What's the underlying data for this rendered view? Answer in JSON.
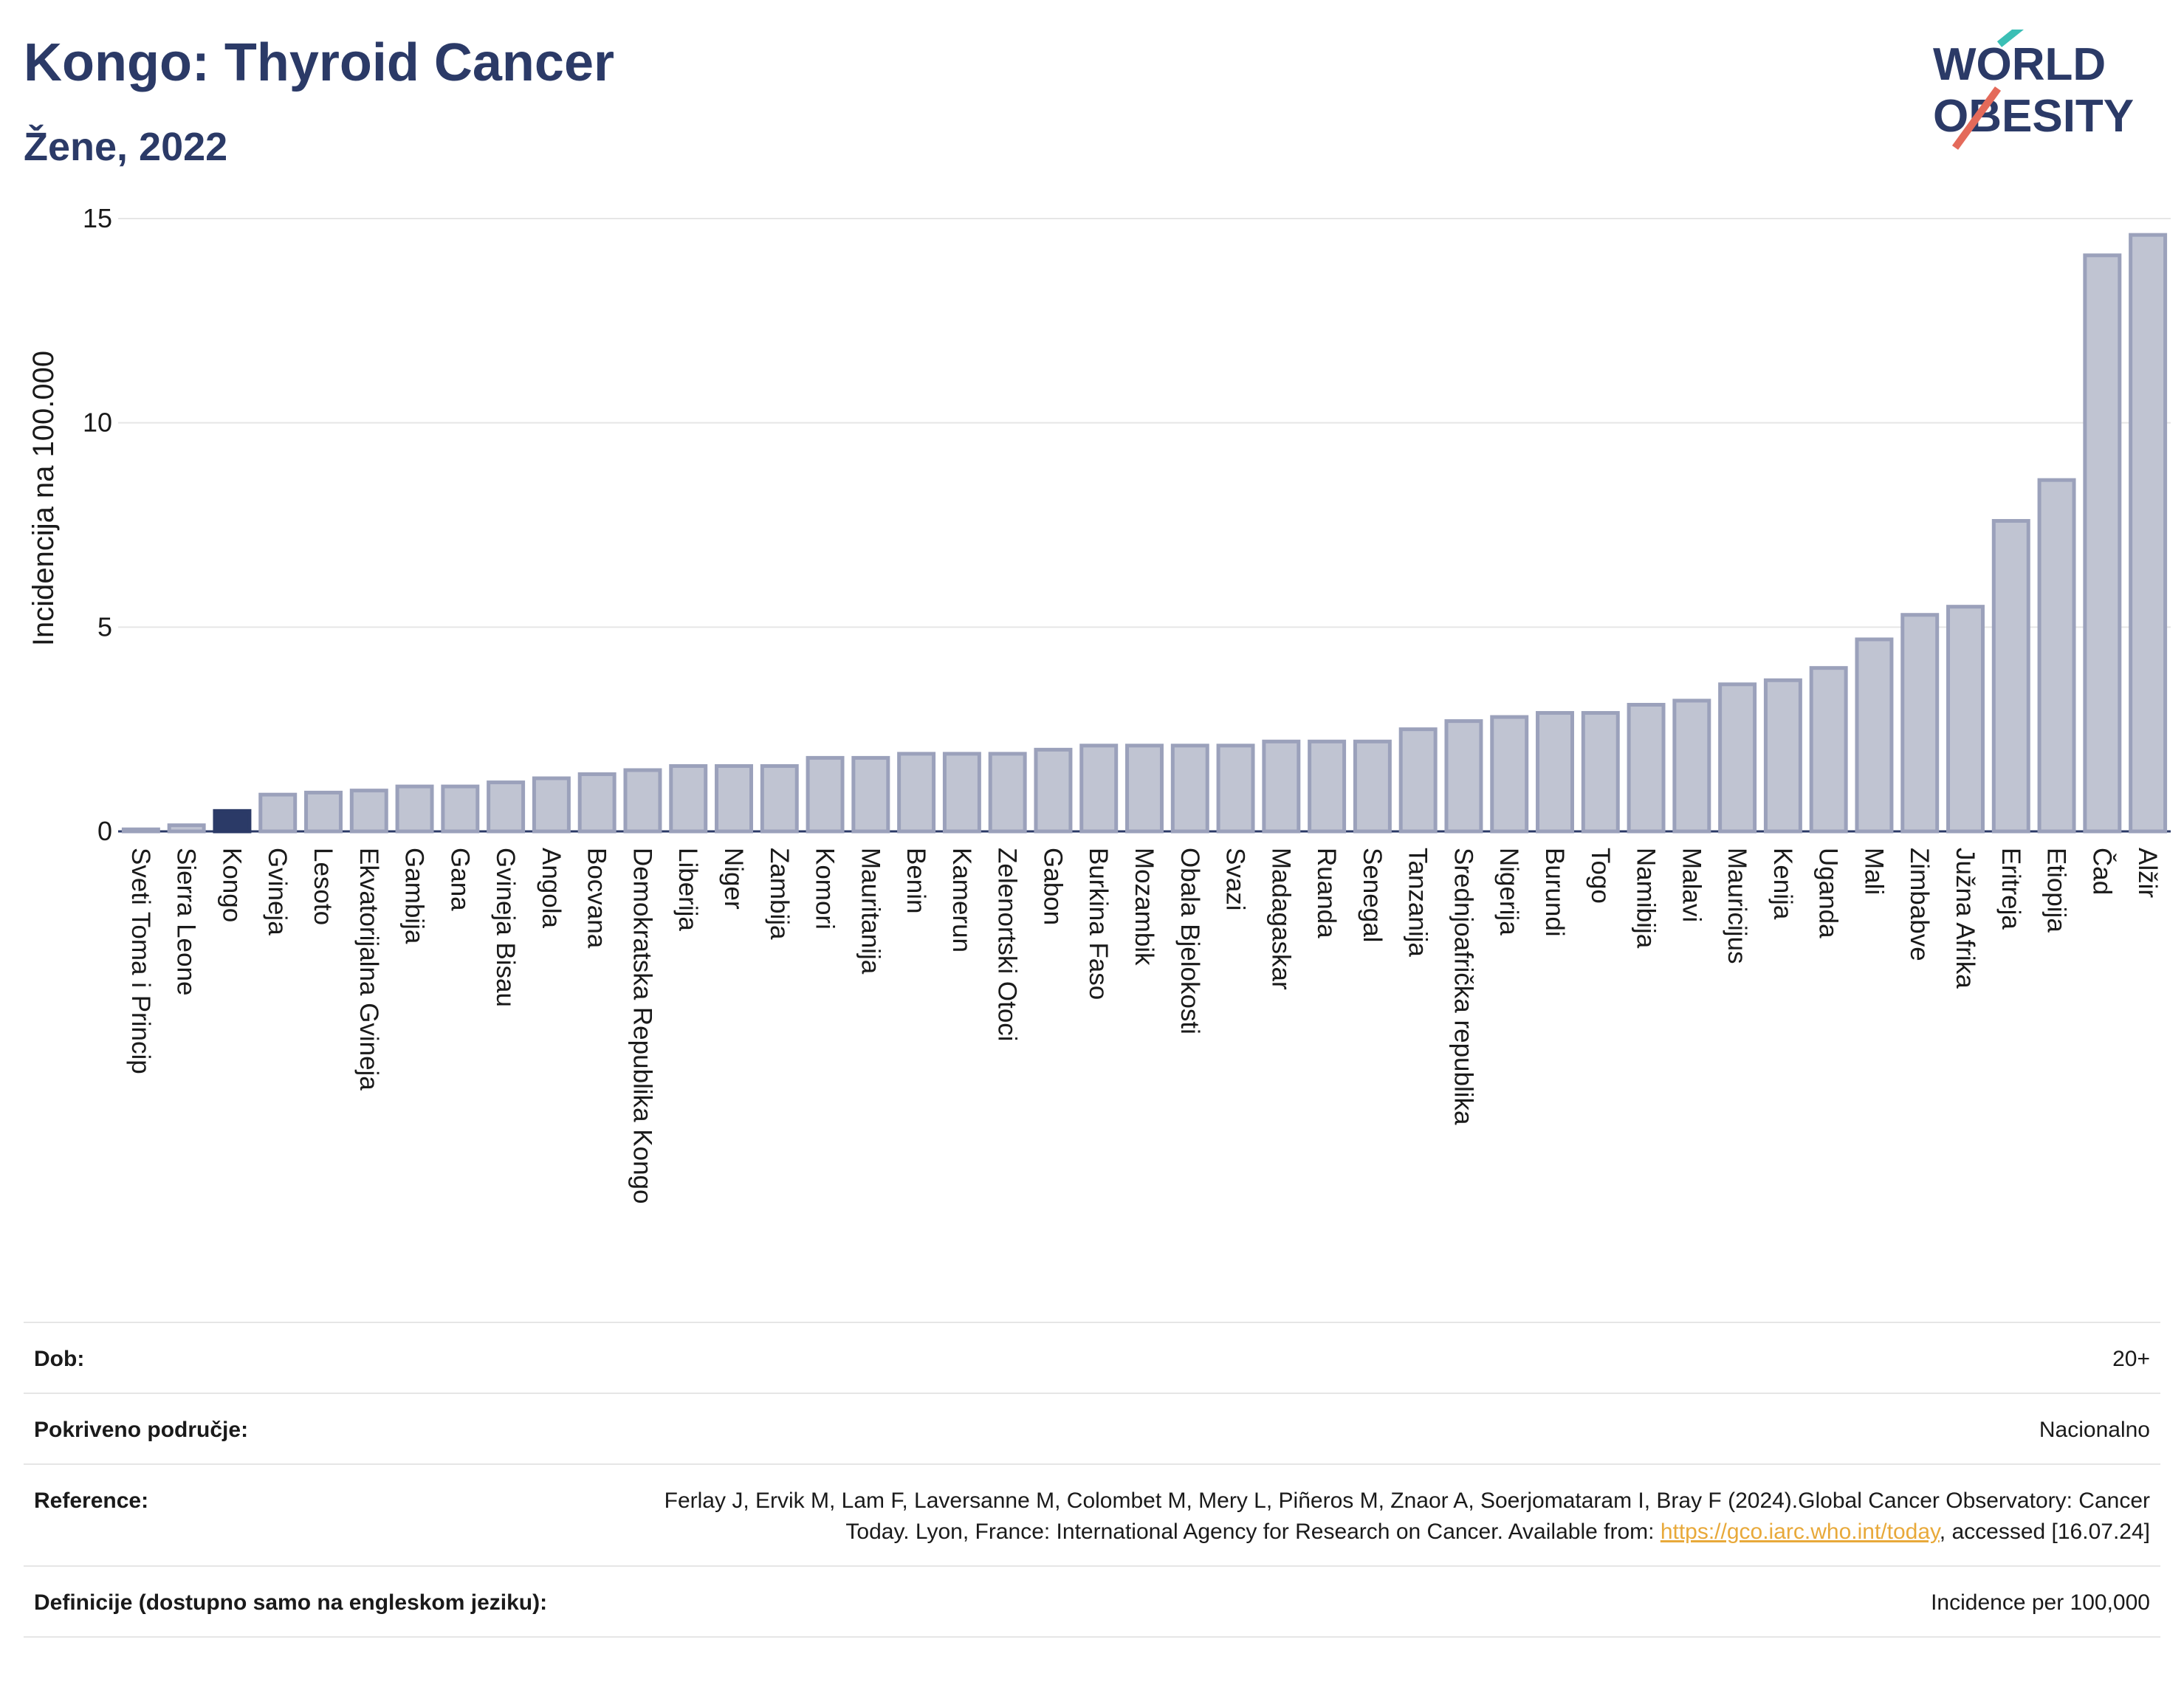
{
  "header": {
    "title": "Kongo: Thyroid Cancer",
    "subtitle": "Žene, 2022",
    "logo_line1": "WORLD",
    "logo_line2": "OBESITY"
  },
  "colors": {
    "bar": "#c0c4d2",
    "bar_stroke": "#9ba1bb",
    "highlight": "#2b3a67",
    "title": "#2b3a67",
    "grid": "#e6e6e6",
    "link": "#e8a93a"
  },
  "chart_data": {
    "type": "bar",
    "ylabel": "Incidencija na 100.000",
    "ylim": [
      0,
      15
    ],
    "yticks": [
      0,
      5,
      10,
      15
    ],
    "grid": true,
    "highlight_category": "Kongo",
    "categories": [
      "Sveti Toma i Princip",
      "Sierra Leone",
      "Kongo",
      "Gvineja",
      "Lesoto",
      "Ekvatorijalna Gvineja",
      "Gambija",
      "Gana",
      "Gvineja Bisau",
      "Angola",
      "Bocvana",
      "Demokratska Republika Kongo",
      "Liberija",
      "Niger",
      "Zambija",
      "Komori",
      "Mauritanija",
      "Benin",
      "Kamerun",
      "Zelenortski Otoci",
      "Gabon",
      "Burkina Faso",
      "Mozambik",
      "Obala Bjelokosti",
      "Svazi",
      "Madagaskar",
      "Ruanda",
      "Senegal",
      "Tanzanija",
      "Srednjoafrička republika",
      "Nigerija",
      "Burundi",
      "Togo",
      "Namibija",
      "Malavi",
      "Mauricijus",
      "Kenija",
      "Uganda",
      "Mali",
      "Zimbabve",
      "Južna Afrika",
      "Eritreja",
      "Etiopija",
      "Čad",
      "Alžir"
    ],
    "values": [
      0.05,
      0.15,
      0.5,
      0.9,
      0.95,
      1.0,
      1.1,
      1.1,
      1.2,
      1.3,
      1.4,
      1.5,
      1.6,
      1.6,
      1.6,
      1.8,
      1.8,
      1.9,
      1.9,
      1.9,
      2.0,
      2.1,
      2.1,
      2.1,
      2.1,
      2.2,
      2.2,
      2.2,
      2.5,
      2.7,
      2.8,
      2.9,
      2.9,
      3.1,
      3.2,
      3.6,
      3.7,
      4.0,
      4.7,
      5.3,
      5.5,
      7.6,
      8.6,
      14.1,
      14.6
    ]
  },
  "info": {
    "rows": [
      {
        "label": "Dob:",
        "value": "20+"
      },
      {
        "label": "Pokriveno područje:",
        "value": "Nacionalno"
      },
      {
        "label": "Reference:",
        "value": "Ferlay J, Ervik M, Lam F, Laversanne M, Colombet M, Mery L, Piñeros M, Znaor A, Soerjomataram I, Bray F (2024).Global Cancer Observatory: Cancer Today. Lyon, France: International Agency for Research on Cancer. Available from: ",
        "link": "https://gco.iarc.who.int/today",
        "suffix": ", accessed [16.07.24]"
      },
      {
        "label": "Definicije (dostupno samo na engleskom jeziku):",
        "value": "Incidence per 100,000"
      }
    ]
  }
}
